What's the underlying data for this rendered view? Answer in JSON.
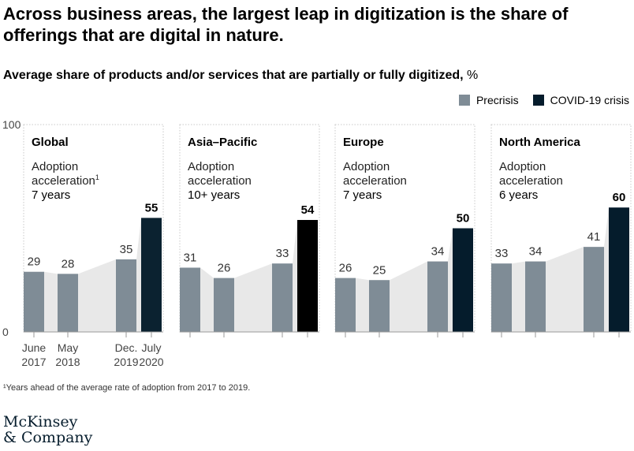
{
  "headline": "Across business areas, the largest leap in digitization is the share of offerings that are digital in nature.",
  "subtitle": {
    "text": "Average share of products and/or services that are partially or fully digitized,",
    "unit": "%"
  },
  "legend": [
    {
      "label": "Precrisis",
      "color": "#7f8c96"
    },
    {
      "label": "COVID-19 crisis",
      "color": "#051c2c"
    }
  ],
  "footnote": "¹Years ahead of the average rate of adoption from 2017 to 2019.",
  "logo": {
    "line1": "McKinsey",
    "line2": "& Company"
  },
  "chart_data": {
    "type": "bar",
    "y_axis_ticks": [
      "100",
      "0"
    ],
    "ylim": [
      0,
      100
    ],
    "categories": [
      "June 2017",
      "May 2018",
      "Dec. 2019",
      "July 2020"
    ],
    "x_tick_labels": [
      [
        "June",
        "2017"
      ],
      [
        "May",
        "2018"
      ],
      [
        "Dec.",
        "2019"
      ],
      [
        "July",
        "2020"
      ]
    ],
    "series_phase": [
      "Precrisis",
      "Precrisis",
      "Precrisis",
      "COVID-19 crisis"
    ],
    "series_colors": {
      "Precrisis": "#7f8c96",
      "COVID-19 crisis": "#051c2c"
    },
    "area_color": "#e8e8e8",
    "panels": [
      {
        "title": "Global",
        "acceleration_label": [
          "Adoption",
          "acceleration"
        ],
        "footnote_mark": "1",
        "acceleration_value": "7 years",
        "values": [
          29,
          28,
          35,
          55
        ],
        "last_color": "#0b2230"
      },
      {
        "title": "Asia–Pacific",
        "acceleration_label": [
          "Adoption",
          "acceleration"
        ],
        "footnote_mark": "",
        "acceleration_value": "10+ years",
        "values": [
          31,
          26,
          33,
          54
        ],
        "last_color": "#000000"
      },
      {
        "title": "Europe",
        "acceleration_label": [
          "Adoption",
          "acceleration"
        ],
        "footnote_mark": "",
        "acceleration_value": "7 years",
        "values": [
          26,
          25,
          34,
          50
        ],
        "last_color": "#051c2c"
      },
      {
        "title": "North America",
        "acceleration_label": [
          "Adoption",
          "acceleration"
        ],
        "footnote_mark": "",
        "acceleration_value": "6 years",
        "values": [
          33,
          34,
          41,
          60
        ],
        "last_color": "#051c2c"
      }
    ]
  }
}
